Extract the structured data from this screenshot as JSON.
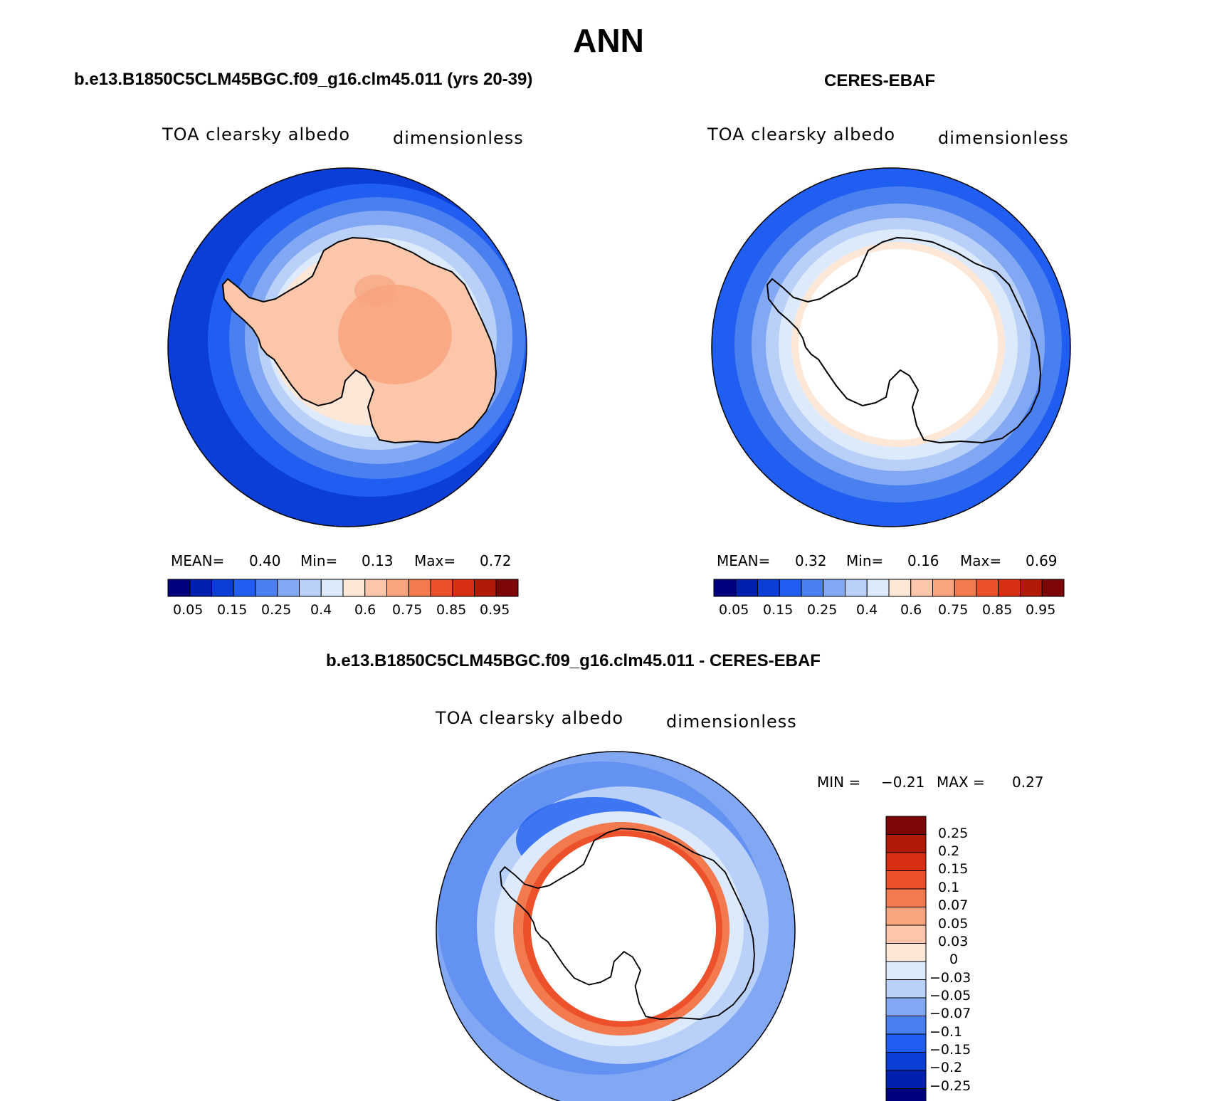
{
  "figure": {
    "title": "ANN",
    "colors": {
      "abs_scale": [
        "#00007f",
        "#0020b0",
        "#0a3ed6",
        "#1f5ef0",
        "#4a7ff0",
        "#82a8f4",
        "#b9d0f8",
        "#dceafc",
        "#fde8d8",
        "#fbc6aa",
        "#f8a47f",
        "#f37a4f",
        "#ec512b",
        "#d82f12",
        "#b21a08",
        "#7d0606"
      ],
      "diff_scale": [
        "#7d0606",
        "#b21a08",
        "#d82f12",
        "#ec512b",
        "#f37a4f",
        "#f8a47f",
        "#fbc6aa",
        "#fde8d8",
        "#dceafc",
        "#b9d0f8",
        "#82a8f4",
        "#4a7ff0",
        "#1f5ef0",
        "#0a3ed6",
        "#0020b0",
        "#00007f"
      ]
    }
  },
  "panels": [
    {
      "id": "model",
      "title": "b.e13.B1850C5CLM45BGC.f09_g16.clm45.011 (yrs 20-39)",
      "variable": "TOA clearsky albedo",
      "units": "dimensionless",
      "stats": {
        "mean_label": "MEAN=",
        "mean": "0.40",
        "min_label": "Min=",
        "min": "0.13",
        "max_label": "Max=",
        "max": "0.72"
      },
      "colorbar_labels": [
        "0.05",
        "0.15",
        "0.25",
        "0.4",
        "0.6",
        "0.75",
        "0.85",
        "0.95"
      ]
    },
    {
      "id": "obs",
      "title": "CERES-EBAF",
      "variable": "TOA clearsky albedo",
      "units": "dimensionless",
      "stats": {
        "mean_label": "MEAN=",
        "mean": "0.32",
        "min_label": "Min=",
        "min": "0.16",
        "max_label": "Max=",
        "max": "0.69"
      },
      "colorbar_labels": [
        "0.05",
        "0.15",
        "0.25",
        "0.4",
        "0.6",
        "0.75",
        "0.85",
        "0.95"
      ]
    },
    {
      "id": "diff",
      "title": "b.e13.B1850C5CLM45BGC.f09_g16.clm45.011 - CERES-EBAF",
      "variable": "TOA clearsky albedo",
      "units": "dimensionless",
      "stats": {
        "min_label": "MIN =",
        "min": "−0.21",
        "max_label": "MAX =",
        "max": "0.27"
      },
      "colorbar_labels": [
        "0.25",
        "0.2",
        "0.15",
        "0.1",
        "0.07",
        "0.05",
        "0.03",
        "0",
        "−0.03",
        "−0.05",
        "−0.07",
        "−0.1",
        "−0.15",
        "−0.2",
        "−0.25"
      ]
    }
  ]
}
